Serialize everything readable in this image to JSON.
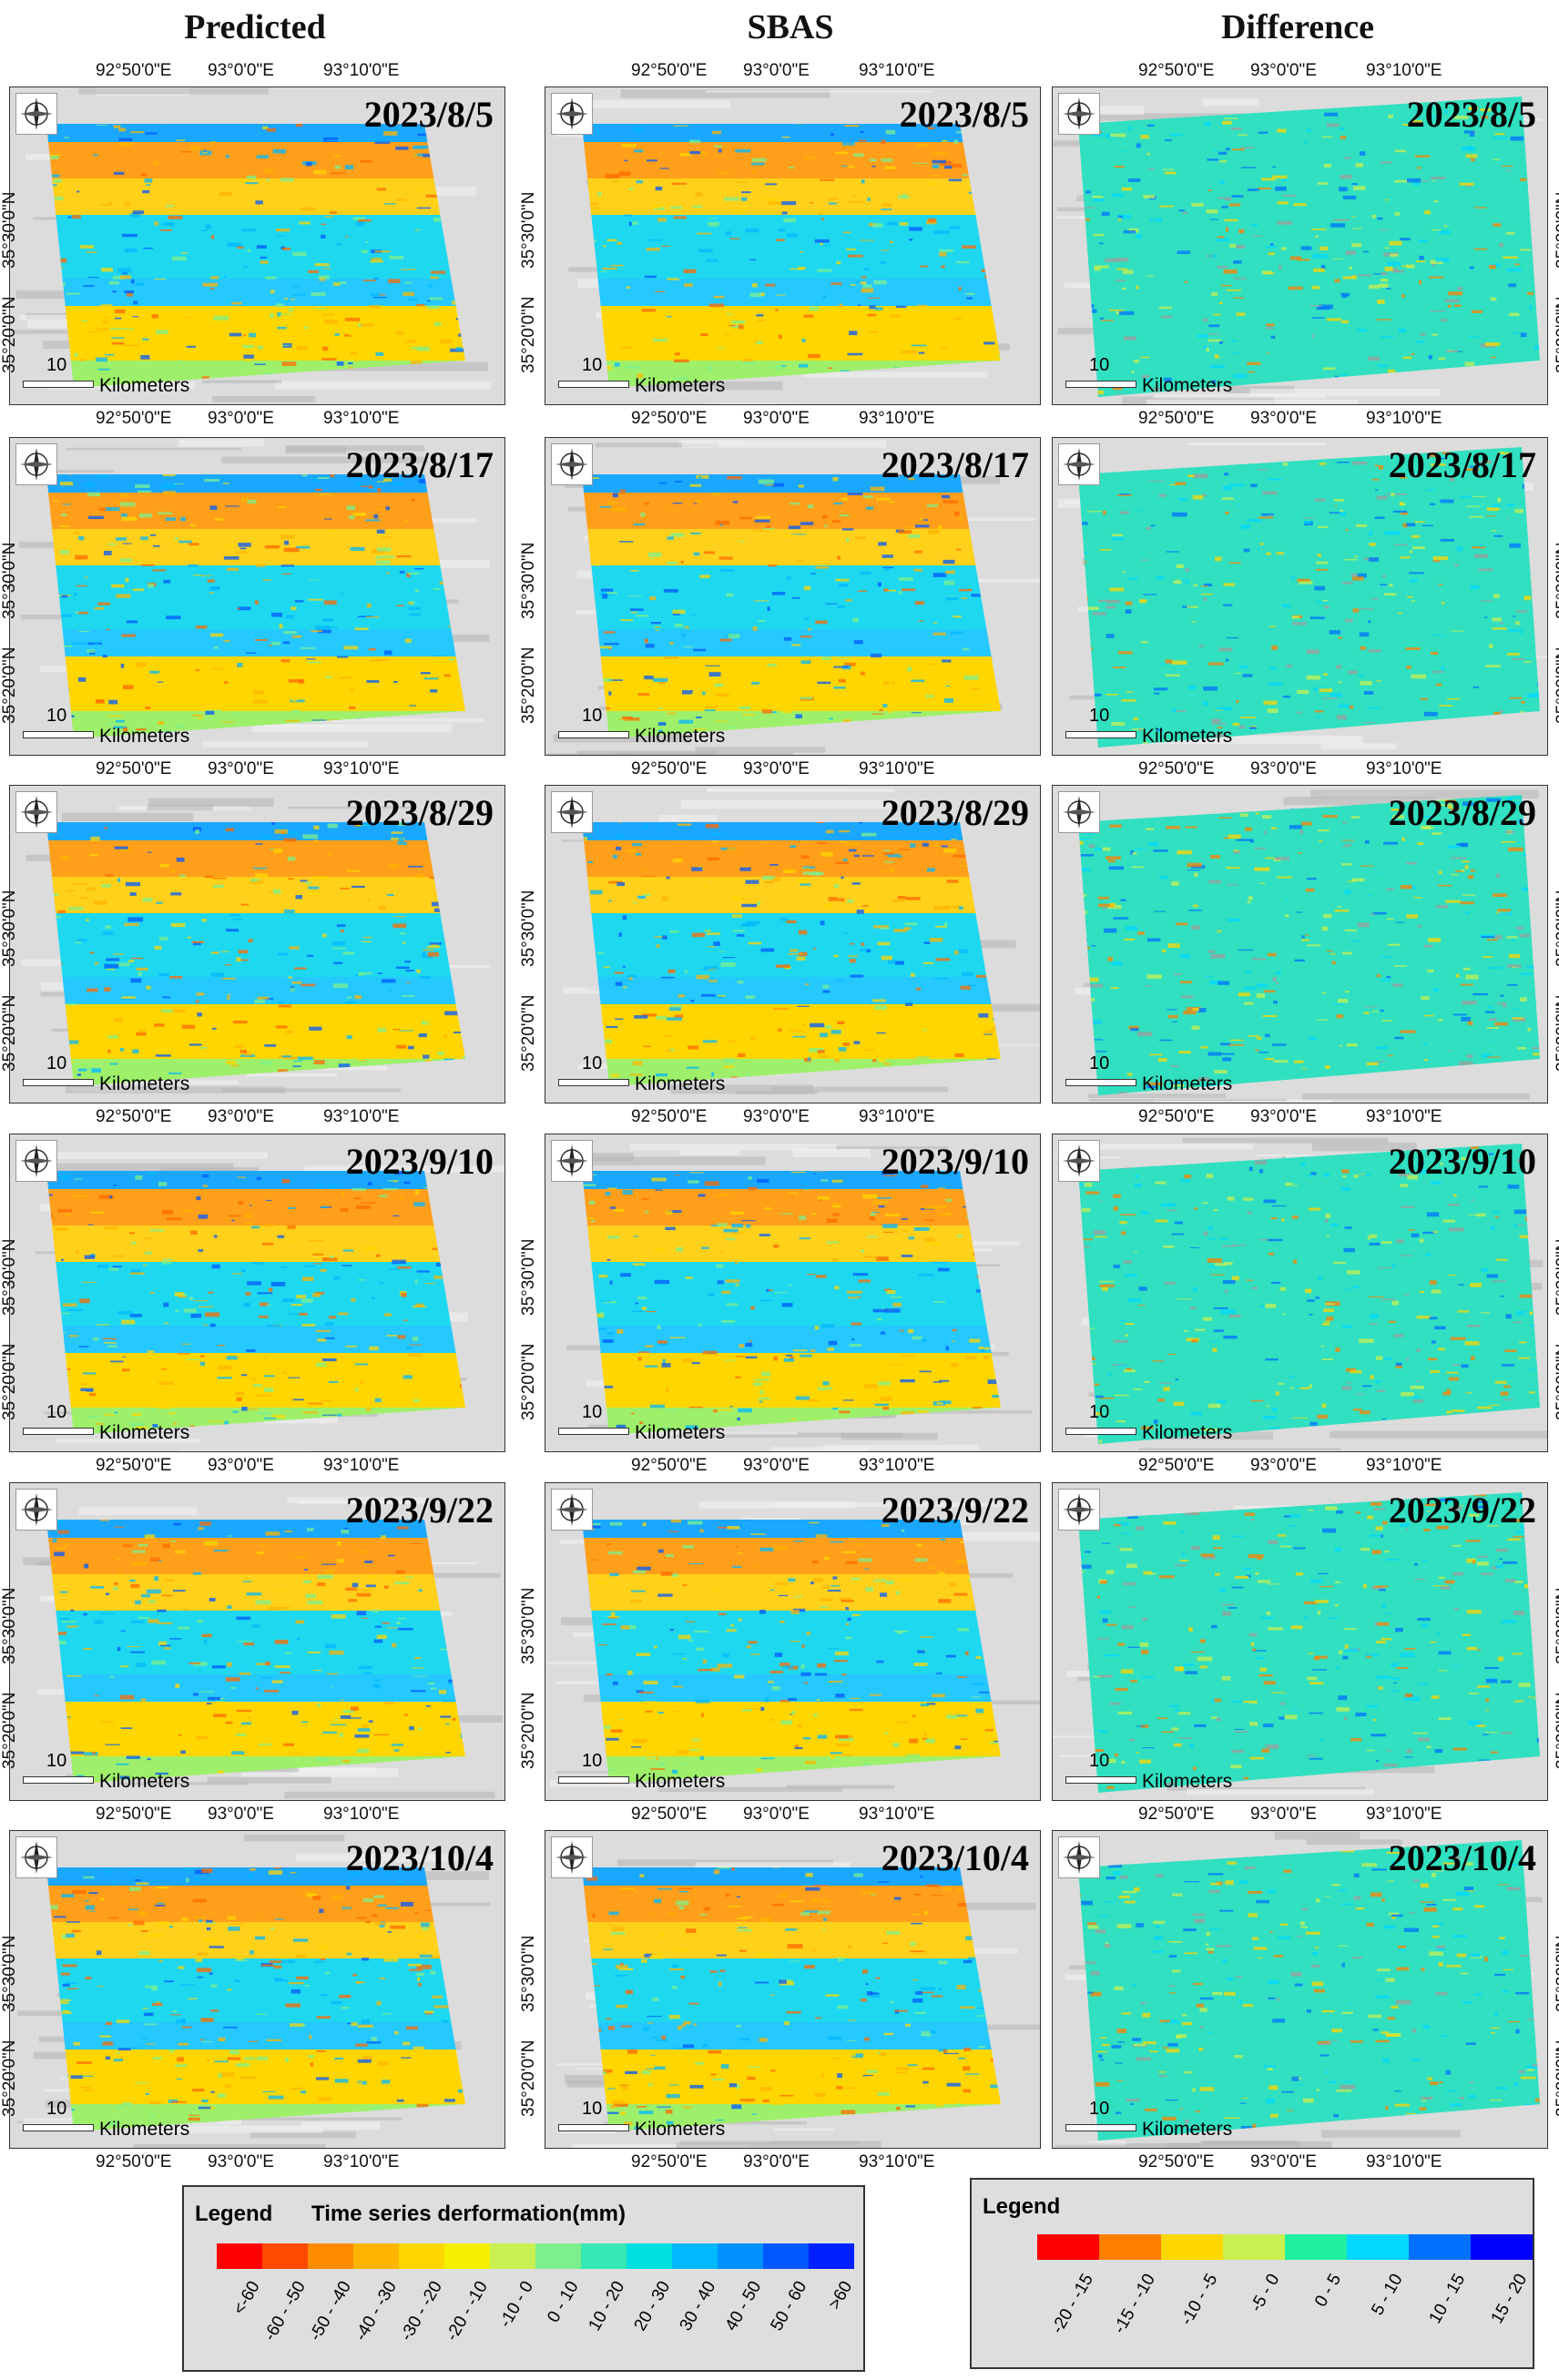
{
  "columns": [
    {
      "title": "Predicted",
      "variant": "def"
    },
    {
      "title": "SBAS",
      "variant": "def"
    },
    {
      "title": "Difference",
      "variant": "diff"
    }
  ],
  "dates": [
    "2023/8/5",
    "2023/8/17",
    "2023/8/29",
    "2023/9/10",
    "2023/9/22",
    "2023/10/4"
  ],
  "lon_ticks": [
    "92°50'0\"E",
    "93°0'0\"E",
    "93°10'0\"E"
  ],
  "lat_ticks": [
    "35°30'0\"N",
    "35°20'0\"N"
  ],
  "scale": {
    "value": "10",
    "unit": "Kilometers"
  },
  "legend_deformation": {
    "title": "Legend",
    "subtitle": "Time series derformation(mm)",
    "classes": [
      {
        "label": "<-60",
        "color": "#ff0000"
      },
      {
        "label": "-60 - -50",
        "color": "#ff4a00"
      },
      {
        "label": "-50 - -40",
        "color": "#ff8c00"
      },
      {
        "label": "-40 - -30",
        "color": "#ffb400"
      },
      {
        "label": "-30 - -20",
        "color": "#ffd700"
      },
      {
        "label": "-20 - -10",
        "color": "#f5f000"
      },
      {
        "label": "-10 - 0",
        "color": "#c8f050"
      },
      {
        "label": "0 - 10",
        "color": "#7cf08c"
      },
      {
        "label": "10 - 20",
        "color": "#35e8b4"
      },
      {
        "label": "20 - 30",
        "color": "#00e0e0"
      },
      {
        "label": "30 - 40",
        "color": "#00b8ff"
      },
      {
        "label": "40 - 50",
        "color": "#0090ff"
      },
      {
        "label": "50 - 60",
        "color": "#0058ff"
      },
      {
        "label": ">60",
        "color": "#0020ff"
      }
    ]
  },
  "legend_difference": {
    "title": "Legend",
    "classes": [
      {
        "label": "-20 - -15",
        "color": "#ff0000"
      },
      {
        "label": "-15 - -10",
        "color": "#ff8000"
      },
      {
        "label": "-10 - -5",
        "color": "#ffd700"
      },
      {
        "label": "-5 - 0",
        "color": "#c8f050"
      },
      {
        "label": "0 - 5",
        "color": "#20f0a0"
      },
      {
        "label": "5 - 10",
        "color": "#00d8ff"
      },
      {
        "label": "10 - 15",
        "color": "#0070ff"
      },
      {
        "label": "15 - 20",
        "color": "#0000ff"
      }
    ]
  }
}
